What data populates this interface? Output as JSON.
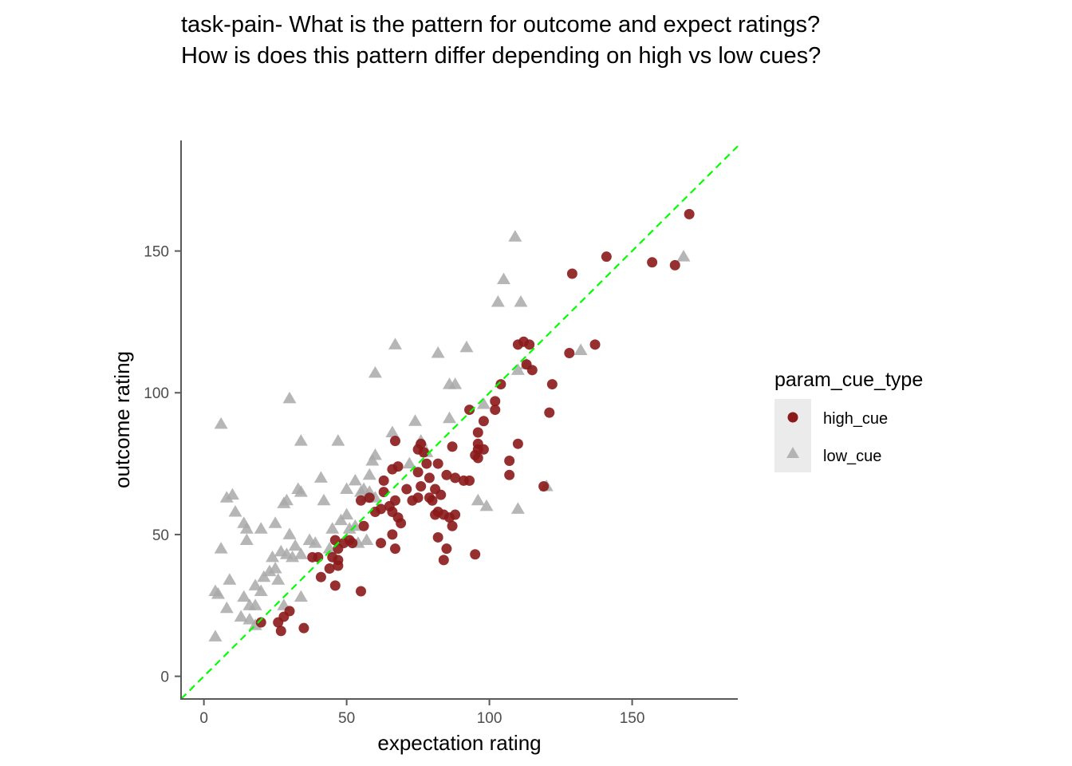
{
  "chart_data": {
    "type": "scatter",
    "title_lines": [
      "task-pain- What is the pattern for outcome and expect ratings?",
      "How is does this pattern differ depending on high vs low cues?"
    ],
    "xlabel": "expectation rating",
    "ylabel": "outcome rating",
    "xlim": [
      -8,
      187
    ],
    "ylim": [
      -8,
      189
    ],
    "xticks": [
      0,
      50,
      100,
      150
    ],
    "yticks": [
      0,
      50,
      100,
      150
    ],
    "grid": false,
    "reference_line": {
      "type": "identity",
      "slope": 1,
      "intercept": 0,
      "color": "#00ff00",
      "style": "dashed"
    },
    "legend": {
      "title": "param_cue_type",
      "placement": "right",
      "entries": [
        "high_cue",
        "low_cue"
      ]
    },
    "series": [
      {
        "name": "high_cue",
        "marker": "circle",
        "color": "#8b1a1a",
        "points": [
          [
            170,
            163
          ],
          [
            141,
            148
          ],
          [
            157,
            146
          ],
          [
            165,
            145
          ],
          [
            129,
            142
          ],
          [
            137,
            117
          ],
          [
            128,
            114
          ],
          [
            112,
            118
          ],
          [
            110,
            117
          ],
          [
            114,
            117
          ],
          [
            113,
            110
          ],
          [
            115,
            108
          ],
          [
            122,
            103
          ],
          [
            104,
            103
          ],
          [
            102,
            97
          ],
          [
            102,
            94
          ],
          [
            121,
            93
          ],
          [
            98,
            90
          ],
          [
            96,
            86
          ],
          [
            96,
            82
          ],
          [
            96,
            80
          ],
          [
            98,
            80
          ],
          [
            95,
            78
          ],
          [
            96,
            77
          ],
          [
            107,
            76
          ],
          [
            110,
            82
          ],
          [
            107,
            71
          ],
          [
            119,
            67
          ],
          [
            93,
            94
          ],
          [
            87,
            81
          ],
          [
            82,
            75
          ],
          [
            85,
            71
          ],
          [
            88,
            70
          ],
          [
            91,
            69
          ],
          [
            93,
            69
          ],
          [
            76,
            82
          ],
          [
            75,
            80
          ],
          [
            77,
            79
          ],
          [
            78,
            75
          ],
          [
            75,
            72
          ],
          [
            79,
            70
          ],
          [
            71,
            66
          ],
          [
            73,
            62
          ],
          [
            75,
            63
          ],
          [
            76,
            67
          ],
          [
            79,
            63
          ],
          [
            80,
            62
          ],
          [
            81,
            66
          ],
          [
            83,
            64
          ],
          [
            82,
            58
          ],
          [
            81,
            57
          ],
          [
            84,
            57
          ],
          [
            86,
            56
          ],
          [
            88,
            57
          ],
          [
            87,
            53
          ],
          [
            82,
            49
          ],
          [
            84,
            41
          ],
          [
            85,
            45
          ],
          [
            95,
            43
          ],
          [
            67,
            83
          ],
          [
            68,
            74
          ],
          [
            66,
            73
          ],
          [
            63,
            69
          ],
          [
            63,
            65
          ],
          [
            67,
            62
          ],
          [
            65,
            60
          ],
          [
            66,
            58
          ],
          [
            68,
            56
          ],
          [
            69,
            54
          ],
          [
            66,
            50
          ],
          [
            67,
            45
          ],
          [
            62,
            59
          ],
          [
            60,
            58
          ],
          [
            62,
            47
          ],
          [
            58,
            63
          ],
          [
            55,
            62
          ],
          [
            56,
            53
          ],
          [
            51,
            48
          ],
          [
            52,
            47
          ],
          [
            49,
            47
          ],
          [
            46,
            48
          ],
          [
            47,
            45
          ],
          [
            45,
            42
          ],
          [
            44,
            38
          ],
          [
            40,
            42
          ],
          [
            38,
            42
          ],
          [
            41,
            35
          ],
          [
            47,
            41
          ],
          [
            47,
            39
          ],
          [
            46,
            32
          ],
          [
            55,
            30
          ],
          [
            30,
            23
          ],
          [
            28,
            21
          ],
          [
            26,
            19
          ],
          [
            20,
            19
          ],
          [
            27,
            16
          ],
          [
            35,
            17
          ]
        ]
      },
      {
        "name": "low_cue",
        "marker": "triangle",
        "color": "#a9a9a9",
        "points": [
          [
            109,
            155
          ],
          [
            168,
            148
          ],
          [
            105,
            140
          ],
          [
            103,
            132
          ],
          [
            111,
            132
          ],
          [
            132,
            115
          ],
          [
            67,
            117
          ],
          [
            82,
            114
          ],
          [
            92,
            116
          ],
          [
            60,
            107
          ],
          [
            86,
            103
          ],
          [
            88,
            103
          ],
          [
            110,
            108
          ],
          [
            113,
            110
          ],
          [
            98,
            96
          ],
          [
            30,
            98
          ],
          [
            74,
            90
          ],
          [
            86,
            91
          ],
          [
            6,
            89
          ],
          [
            34,
            83
          ],
          [
            47,
            83
          ],
          [
            66,
            86
          ],
          [
            76,
            83
          ],
          [
            60,
            78
          ],
          [
            59,
            76
          ],
          [
            78,
            79
          ],
          [
            72,
            75
          ],
          [
            58,
            71
          ],
          [
            53,
            69
          ],
          [
            56,
            66
          ],
          [
            57,
            63
          ],
          [
            41,
            70
          ],
          [
            50,
            66
          ],
          [
            55,
            65
          ],
          [
            58,
            65
          ],
          [
            60,
            63
          ],
          [
            33,
            66
          ],
          [
            34,
            65
          ],
          [
            42,
            62
          ],
          [
            29,
            62
          ],
          [
            28,
            61
          ],
          [
            8,
            63
          ],
          [
            10,
            64
          ],
          [
            11,
            58
          ],
          [
            14,
            54
          ],
          [
            15,
            52
          ],
          [
            20,
            52
          ],
          [
            25,
            54
          ],
          [
            30,
            50
          ],
          [
            32,
            46
          ],
          [
            37,
            48
          ],
          [
            39,
            47
          ],
          [
            44,
            45
          ],
          [
            45,
            52
          ],
          [
            48,
            55
          ],
          [
            51,
            52
          ],
          [
            50,
            57
          ],
          [
            53,
            53
          ],
          [
            54,
            47
          ],
          [
            57,
            48
          ],
          [
            6,
            45
          ],
          [
            15,
            48
          ],
          [
            24,
            42
          ],
          [
            27,
            44
          ],
          [
            29,
            43
          ],
          [
            31,
            42
          ],
          [
            34,
            43
          ],
          [
            25,
            38
          ],
          [
            26,
            34
          ],
          [
            23,
            37
          ],
          [
            21,
            35
          ],
          [
            18,
            32
          ],
          [
            20,
            30
          ],
          [
            9,
            34
          ],
          [
            13,
            21
          ],
          [
            16,
            25
          ],
          [
            14,
            28
          ],
          [
            4,
            30
          ],
          [
            5,
            29
          ],
          [
            8,
            24
          ],
          [
            18,
            25
          ],
          [
            16,
            20
          ],
          [
            34,
            28
          ],
          [
            28,
            25
          ],
          [
            18,
            18
          ],
          [
            4,
            14
          ],
          [
            99,
            60
          ],
          [
            110,
            59
          ],
          [
            96,
            62
          ],
          [
            120,
            67
          ]
        ]
      }
    ]
  }
}
